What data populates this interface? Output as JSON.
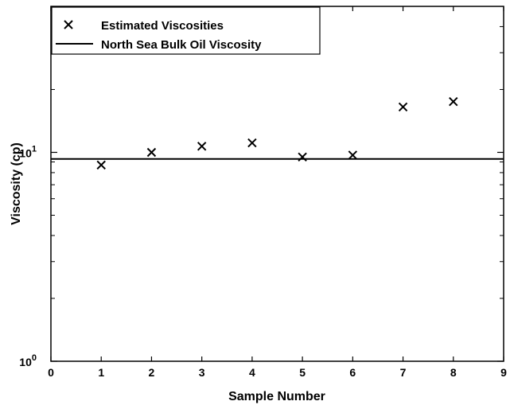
{
  "chart_data": {
    "type": "scatter",
    "title": "",
    "xlabel": "Sample Number",
    "ylabel": "Viscosity (cp)",
    "xlim": [
      0,
      9
    ],
    "ylim": [
      1,
      50
    ],
    "yscale": "log",
    "x_ticks": [
      "0",
      "1",
      "2",
      "3",
      "4",
      "5",
      "6",
      "7",
      "8",
      "9"
    ],
    "y_ticks": [
      {
        "value": 1,
        "base": "10",
        "exp": "0"
      },
      {
        "value": 10,
        "base": "10",
        "exp": "1"
      }
    ],
    "grid": false,
    "legend_position": "top-left",
    "series": [
      {
        "name": "Estimated Viscosities",
        "marker": "x",
        "x": [
          1,
          2,
          3,
          4,
          5,
          6,
          7,
          8
        ],
        "y": [
          8.7,
          10.0,
          10.7,
          11.1,
          9.5,
          9.7,
          16.5,
          17.5
        ]
      }
    ],
    "reference_lines": [
      {
        "name": "North Sea Bulk Oil Viscosity",
        "y": 9.3,
        "style": "solid"
      }
    ],
    "colors": {
      "marks": "#000000",
      "background": "#ffffff"
    }
  }
}
